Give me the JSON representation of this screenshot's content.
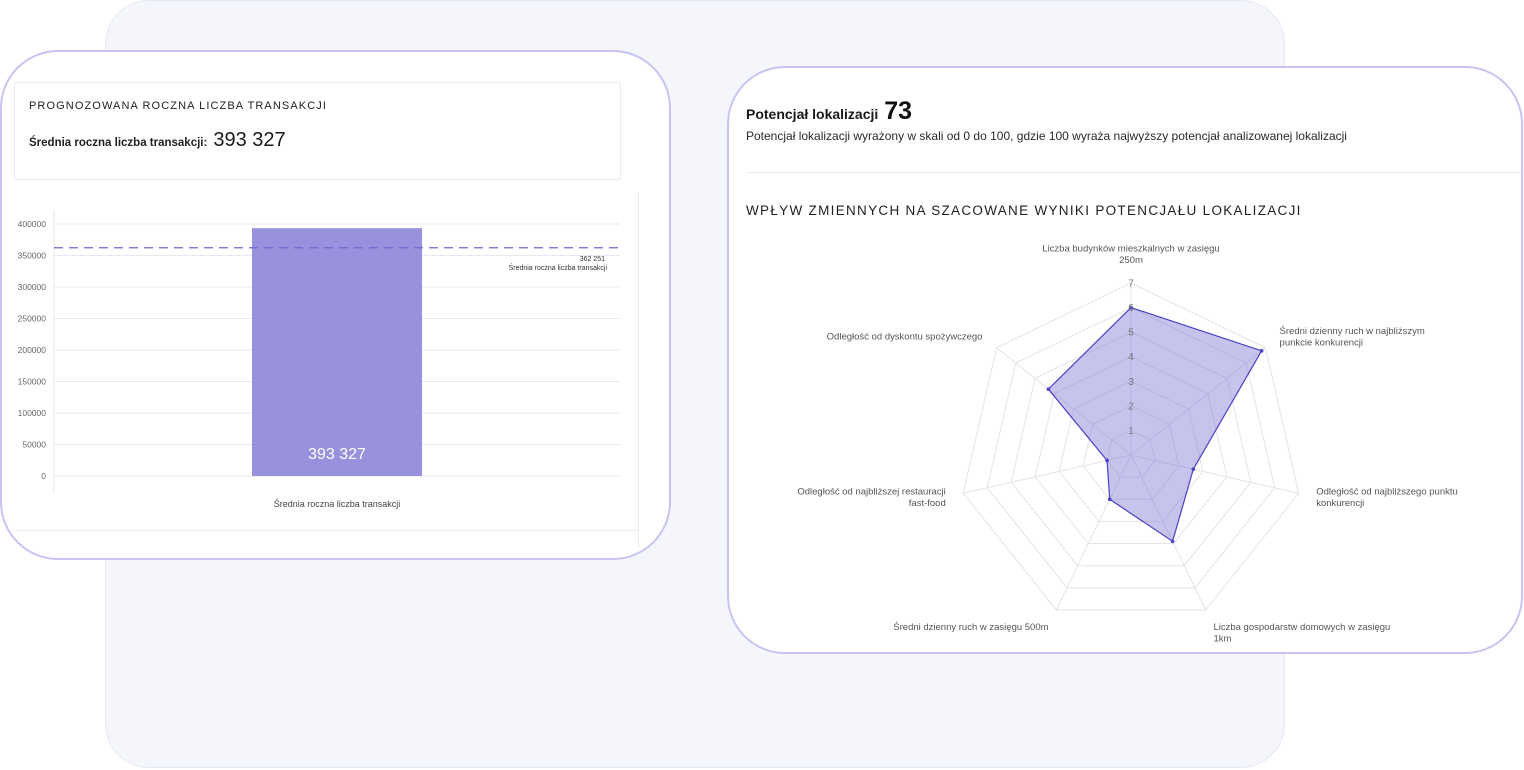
{
  "transactions": {
    "title": "PROGNOZOWANA ROCZNA LICZBA TRANSAKCJI",
    "avg_label": "Średnia roczna liczba transakcji:",
    "avg_value": "393 327"
  },
  "potential": {
    "label": "Potencjał lokalizacji",
    "value": "73",
    "description": "Potencjał lokalizacji wyrażony w skali od 0 do 100, gdzie 100 wyraża najwyższy potencjał analizowanej lokalizacji"
  },
  "radar_section_title": "WPŁYW ZMIENNYCH NA SZACOWANE WYNIKI POTENCJAŁU LOKALIZACJI",
  "colors": {
    "bar": "#9891dd",
    "reference_line": "#6f67cf",
    "radar_fill": "rgba(120,112,210,0.42)",
    "radar_stroke": "#4a41c8",
    "card_border": "#c7c3f3"
  },
  "chart_data": [
    {
      "type": "bar",
      "categories": [
        "Średnia roczna liczba transakcji"
      ],
      "values": [
        393327
      ],
      "data_labels": [
        "393 327"
      ],
      "ylim": [
        0,
        400000
      ],
      "yticks": [
        0,
        50000,
        100000,
        150000,
        200000,
        250000,
        300000,
        350000,
        400000
      ],
      "reference_line": {
        "value": 362251,
        "value_label": "362 251",
        "label": "Średnia roczna liczba transakcji",
        "style": "dashed"
      },
      "grid": true
    },
    {
      "type": "radar",
      "axes": [
        [
          "Liczba budynków mieszkalnych w zasięgu",
          "250m"
        ],
        [
          "Średni dzienny ruch w najbliższym",
          "punkcie konkurencji"
        ],
        [
          "Odległość od najbliższego punktu",
          "konkurencji"
        ],
        [
          "Liczba gospodarstw domowych w zasięgu",
          "1km"
        ],
        [
          "Średni dzienny ruch w zasięgu 500m"
        ],
        [
          "Odległość od najbliższej restauracji",
          "fast-food"
        ],
        [
          "Odległość od dyskontu spożywczego"
        ]
      ],
      "values": [
        6.0,
        6.8,
        2.6,
        3.9,
        2.0,
        1.0,
        4.3
      ],
      "rlim": [
        0,
        7
      ],
      "rticks": [
        1,
        2,
        3,
        4,
        5,
        6,
        7
      ]
    }
  ]
}
